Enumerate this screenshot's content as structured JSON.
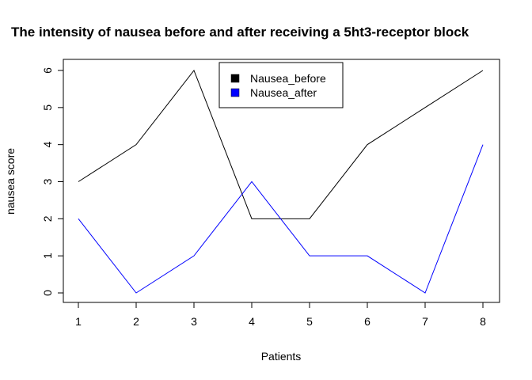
{
  "chart_data": {
    "type": "line",
    "title": "The intensity of nausea before and after receiving a 5ht3-receptor block",
    "xlabel": "Patients",
    "ylabel": "nausea score",
    "x": [
      1,
      2,
      3,
      4,
      5,
      6,
      7,
      8
    ],
    "xlim": [
      1,
      8
    ],
    "ylim": [
      0,
      6
    ],
    "x_ticks": [
      1,
      2,
      3,
      4,
      5,
      6,
      7,
      8
    ],
    "y_ticks": [
      0,
      1,
      2,
      3,
      4,
      5,
      6
    ],
    "grid": false,
    "legend_position": "top-center",
    "series": [
      {
        "name": "Nausea_before",
        "color": "#000000",
        "values": [
          3,
          4,
          6,
          2,
          2,
          4,
          5,
          6
        ]
      },
      {
        "name": "Nausea_after",
        "color": "#0000ff",
        "values": [
          2,
          0,
          1,
          3,
          1,
          1,
          0,
          4
        ]
      }
    ]
  }
}
